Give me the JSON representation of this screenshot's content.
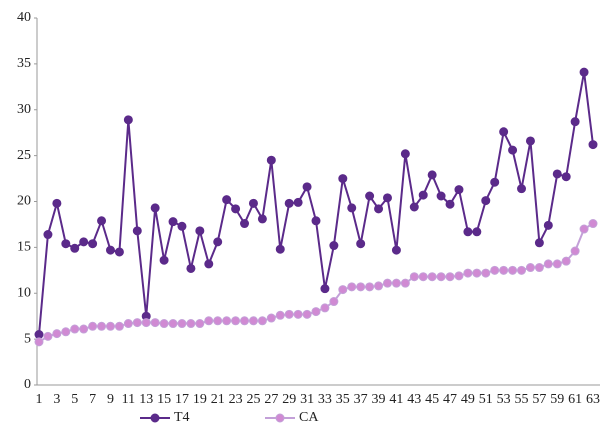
{
  "chart_data": {
    "type": "line",
    "categories": [
      1,
      null,
      3,
      null,
      5,
      null,
      7,
      null,
      9,
      null,
      11,
      null,
      13,
      null,
      15,
      null,
      17,
      null,
      19,
      null,
      21,
      null,
      23,
      null,
      25,
      null,
      27,
      null,
      29,
      null,
      31,
      null,
      33,
      null,
      35,
      null,
      37,
      null,
      39,
      null,
      41,
      null,
      43,
      null,
      45,
      null,
      47,
      null,
      49,
      null,
      51,
      null,
      53,
      null,
      55,
      null,
      57,
      null,
      59,
      null,
      61,
      null,
      63
    ],
    "series": [
      {
        "name": "T4",
        "color": "#5b2a8a",
        "marker_color": "#5b2a8a",
        "values": [
          5.5,
          16.4,
          19.8,
          15.4,
          14.9,
          15.6,
          15.4,
          17.9,
          14.7,
          14.5,
          28.9,
          16.8,
          7.5,
          19.3,
          13.6,
          17.8,
          17.3,
          12.7,
          16.8,
          13.2,
          15.6,
          20.2,
          19.2,
          17.6,
          19.8,
          18.1,
          24.5,
          14.8,
          19.8,
          19.9,
          21.6,
          17.9,
          10.5,
          15.2,
          22.5,
          19.3,
          15.4,
          20.6,
          19.2,
          20.4,
          14.7,
          25.2,
          19.4,
          20.7,
          22.9,
          20.6,
          19.7,
          21.3,
          16.7,
          16.7,
          20.1,
          22.1,
          27.6,
          25.6,
          21.4,
          26.6,
          15.5,
          17.4,
          23.0,
          22.7,
          28.7,
          34.1,
          26.2
        ]
      },
      {
        "name": "CA",
        "color": "#c3a0d8",
        "marker_color": "#d08ad3",
        "values": [
          4.7,
          5.3,
          5.6,
          5.8,
          6.1,
          6.1,
          6.4,
          6.4,
          6.4,
          6.4,
          6.7,
          6.8,
          6.8,
          6.8,
          6.7,
          6.7,
          6.7,
          6.7,
          6.7,
          7.0,
          7.0,
          7.0,
          7.0,
          7.0,
          7.0,
          7.0,
          7.3,
          7.6,
          7.7,
          7.7,
          7.7,
          8.0,
          8.4,
          9.1,
          10.4,
          10.7,
          10.7,
          10.7,
          10.8,
          11.1,
          11.1,
          11.1,
          11.8,
          11.8,
          11.8,
          11.8,
          11.8,
          11.9,
          12.2,
          12.2,
          12.2,
          12.5,
          12.5,
          12.5,
          12.5,
          12.8,
          12.8,
          13.2,
          13.2,
          13.5,
          14.6,
          17.0,
          17.6
        ]
      }
    ],
    "ylim": [
      0,
      40
    ],
    "yticks": [
      0,
      5,
      10,
      15,
      20,
      25,
      30,
      35,
      40
    ],
    "grid": false,
    "legend": "bottom"
  }
}
